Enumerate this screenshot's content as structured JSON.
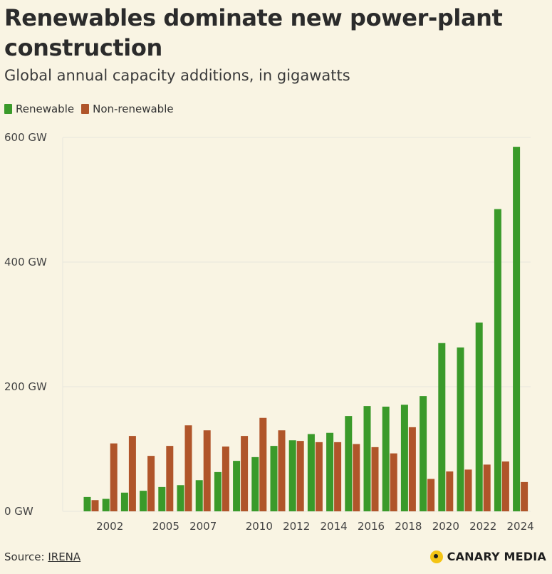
{
  "title": "Renewables dominate new power-plant construction",
  "subtitle": "Global annual capacity additions, in gigawatts",
  "source_label": "Source:",
  "source_link": "IRENA",
  "brand": "CANARY MEDIA",
  "colors": {
    "renewable": "#3a9a2a",
    "nonrenewable": "#b0552a",
    "background": "#f9f4e3",
    "grid": "#e8e6dc"
  },
  "chart_data": {
    "type": "bar",
    "categories": [
      "2001",
      "2002",
      "2003",
      "2004",
      "2005",
      "2006",
      "2007",
      "2008",
      "2009",
      "2010",
      "2011",
      "2012",
      "2013",
      "2014",
      "2015",
      "2016",
      "2017",
      "2018",
      "2019",
      "2020",
      "2021",
      "2022",
      "2023",
      "2024"
    ],
    "series": [
      {
        "name": "Renewable",
        "values": [
          23,
          20,
          30,
          33,
          39,
          42,
          50,
          63,
          81,
          87,
          105,
          114,
          124,
          126,
          153,
          169,
          168,
          171,
          185,
          270,
          263,
          303,
          485,
          585
        ]
      },
      {
        "name": "Non-renewable",
        "values": [
          18,
          109,
          121,
          89,
          105,
          138,
          130,
          104,
          121,
          150,
          130,
          113,
          111,
          111,
          108,
          103,
          93,
          135,
          52,
          64,
          67,
          75,
          80,
          47
        ]
      }
    ],
    "xtick_labels": [
      "2002",
      "2005",
      "2007",
      "2010",
      "2012",
      "2014",
      "2016",
      "2018",
      "2020",
      "2022",
      "2024"
    ],
    "ytick_labels": [
      "0 GW",
      "200 GW",
      "400 GW",
      "600 GW"
    ],
    "yticks": [
      0,
      200,
      400,
      600
    ],
    "ylim": [
      0,
      600
    ],
    "grid": true,
    "legend_position": "top-left"
  }
}
